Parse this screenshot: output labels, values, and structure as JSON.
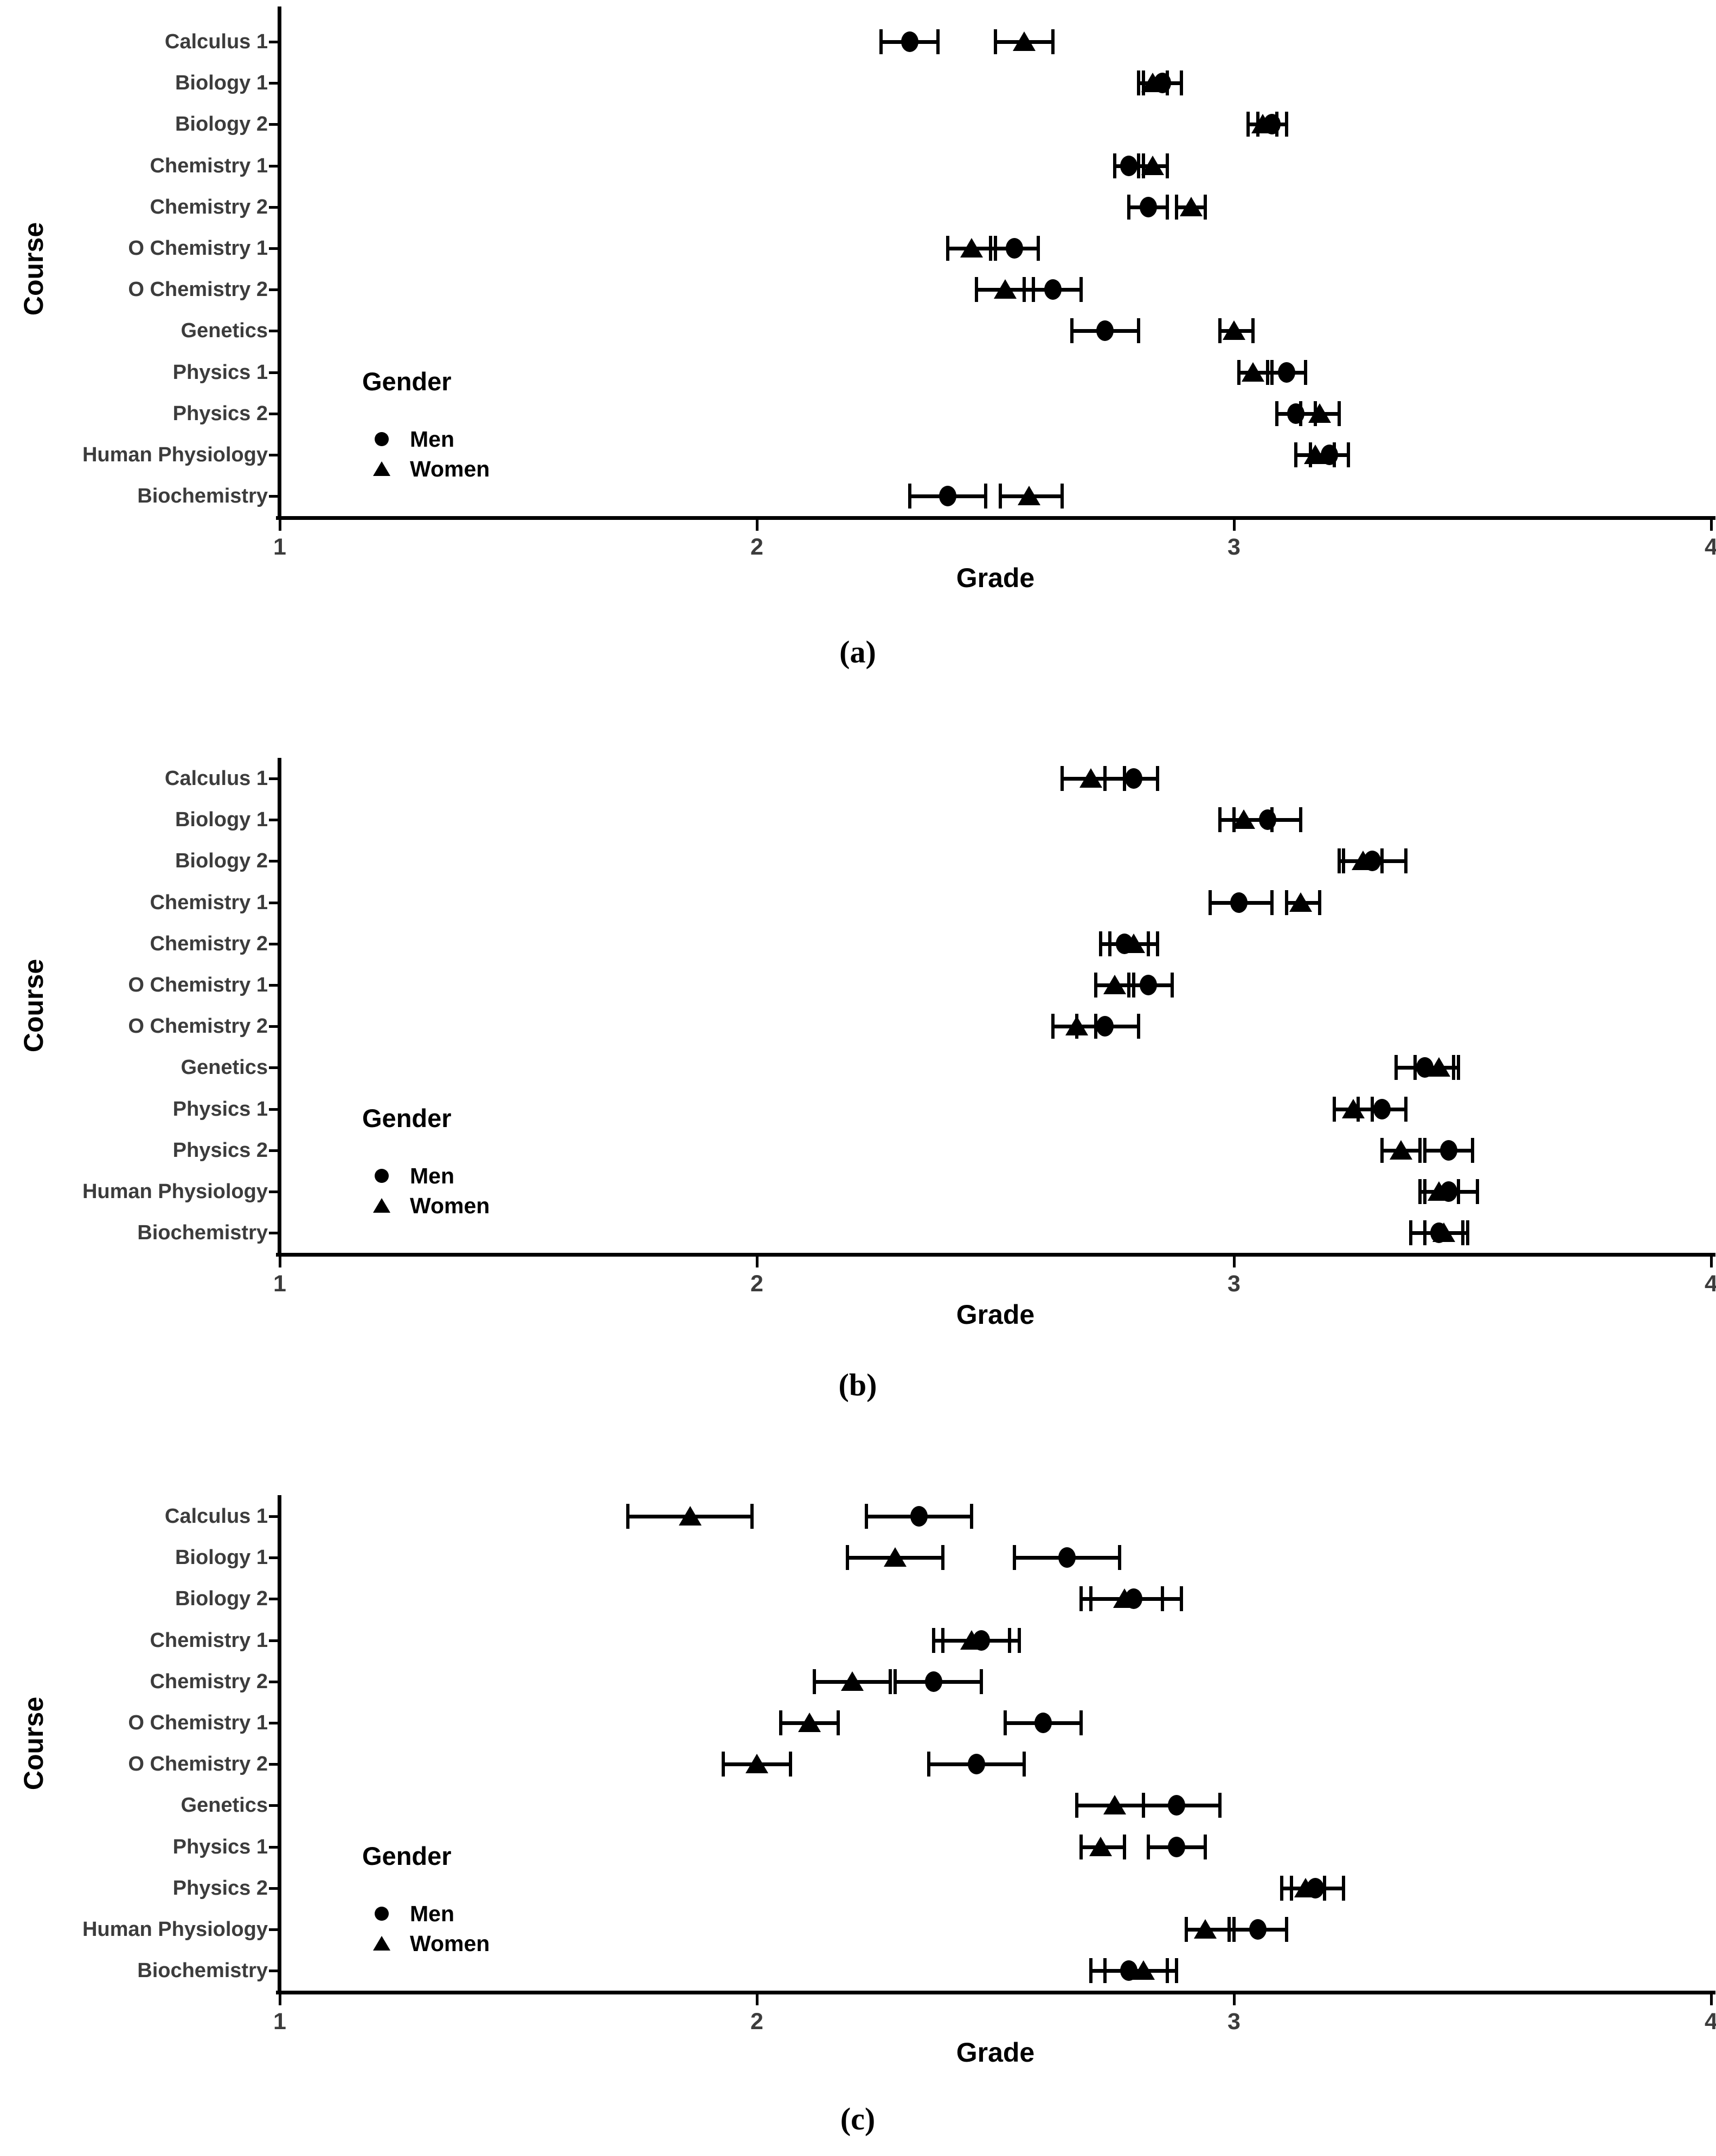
{
  "figure": {
    "x_axis_label": "Grade",
    "y_axis_label": "Course",
    "x_ticks": [
      "1",
      "2",
      "3",
      "4"
    ],
    "legend": {
      "title": "Gender",
      "men_label": "Men",
      "women_label": "Women"
    },
    "marker_color": "#000000",
    "text_color": "#3c3c3c",
    "panel_letters": [
      "(a)",
      "(b)",
      "(c)"
    ]
  },
  "chart_data": [
    {
      "type": "scatter",
      "panel": "(a)",
      "xlabel": "Grade",
      "ylabel": "Course",
      "xlim": [
        1,
        4
      ],
      "xticks": [
        1,
        2,
        3,
        4
      ],
      "grid": false,
      "legend": {
        "title": "Gender",
        "series": [
          "Men",
          "Women"
        ],
        "position": "inside-lower-left"
      },
      "categories": [
        "Calculus 1",
        "Biology 1",
        "Biology 2",
        "Chemistry 1",
        "Chemistry 2",
        "O Chemistry 1",
        "O Chemistry 2",
        "Genetics",
        "Physics 1",
        "Physics 2",
        "Human Physiology",
        "Biochemistry"
      ],
      "series": [
        {
          "name": "Men",
          "marker": "circle",
          "values": [
            2.32,
            2.85,
            3.08,
            2.78,
            2.82,
            2.54,
            2.62,
            2.73,
            3.11,
            3.13,
            3.2,
            2.4
          ],
          "ci_low": [
            2.26,
            2.81,
            3.05,
            2.75,
            2.78,
            2.49,
            2.56,
            2.66,
            3.07,
            3.09,
            3.16,
            2.32
          ],
          "ci_high": [
            2.38,
            2.89,
            3.11,
            2.81,
            2.86,
            2.59,
            2.68,
            2.8,
            3.15,
            3.17,
            3.24,
            2.48
          ]
        },
        {
          "name": "Women",
          "marker": "triangle",
          "values": [
            2.56,
            2.83,
            3.06,
            2.83,
            2.91,
            2.45,
            2.52,
            3.0,
            3.04,
            3.18,
            3.17,
            2.57
          ],
          "ci_low": [
            2.5,
            2.8,
            3.03,
            2.8,
            2.88,
            2.4,
            2.46,
            2.97,
            3.01,
            3.14,
            3.13,
            2.51
          ],
          "ci_high": [
            2.62,
            2.86,
            3.09,
            2.86,
            2.94,
            2.5,
            2.58,
            3.04,
            3.08,
            3.22,
            3.21,
            2.64
          ]
        }
      ]
    },
    {
      "type": "scatter",
      "panel": "(b)",
      "xlabel": "Grade",
      "ylabel": "Course",
      "xlim": [
        1,
        4
      ],
      "xticks": [
        1,
        2,
        3,
        4
      ],
      "grid": false,
      "legend": {
        "title": "Gender",
        "series": [
          "Men",
          "Women"
        ],
        "position": "inside-lower-left"
      },
      "categories": [
        "Calculus 1",
        "Biology 1",
        "Biology 2",
        "Chemistry 1",
        "Chemistry 2",
        "O Chemistry 1",
        "O Chemistry 2",
        "Genetics",
        "Physics 1",
        "Physics 2",
        "Human Physiology",
        "Biochemistry"
      ],
      "series": [
        {
          "name": "Men",
          "marker": "circle",
          "values": [
            2.79,
            3.07,
            3.29,
            3.01,
            2.77,
            2.82,
            2.73,
            3.4,
            3.31,
            3.45,
            3.45,
            3.43
          ],
          "ci_low": [
            2.73,
            3.0,
            3.23,
            2.95,
            2.72,
            2.78,
            2.67,
            3.34,
            3.26,
            3.4,
            3.4,
            3.37
          ],
          "ci_high": [
            2.84,
            3.14,
            3.36,
            3.08,
            2.82,
            2.87,
            2.8,
            3.46,
            3.36,
            3.5,
            3.51,
            3.48
          ]
        },
        {
          "name": "Women",
          "marker": "triangle",
          "values": [
            2.7,
            3.02,
            3.27,
            3.14,
            2.79,
            2.75,
            2.67,
            3.43,
            3.25,
            3.35,
            3.43,
            3.44
          ],
          "ci_low": [
            2.64,
            2.97,
            3.22,
            3.11,
            2.74,
            2.71,
            2.62,
            3.38,
            3.21,
            3.31,
            3.39,
            3.4
          ],
          "ci_high": [
            2.77,
            3.08,
            3.31,
            3.18,
            2.84,
            2.79,
            2.71,
            3.47,
            3.29,
            3.39,
            3.47,
            3.49
          ]
        }
      ]
    },
    {
      "type": "scatter",
      "panel": "(c)",
      "xlabel": "Grade",
      "ylabel": "Course",
      "xlim": [
        1,
        4
      ],
      "xticks": [
        1,
        2,
        3,
        4
      ],
      "grid": false,
      "legend": {
        "title": "Gender",
        "series": [
          "Men",
          "Women"
        ],
        "position": "inside-lower-left"
      },
      "categories": [
        "Calculus 1",
        "Biology 1",
        "Biology 2",
        "Chemistry 1",
        "Chemistry 2",
        "O Chemistry 1",
        "O Chemistry 2",
        "Genetics",
        "Physics 1",
        "Physics 2",
        "Human Physiology",
        "Biochemistry"
      ],
      "series": [
        {
          "name": "Men",
          "marker": "circle",
          "values": [
            2.34,
            2.65,
            2.79,
            2.47,
            2.37,
            2.6,
            2.46,
            2.88,
            2.88,
            3.17,
            3.05,
            2.78
          ],
          "ci_low": [
            2.23,
            2.54,
            2.7,
            2.39,
            2.29,
            2.52,
            2.36,
            2.81,
            2.82,
            3.12,
            2.99,
            2.7
          ],
          "ci_high": [
            2.45,
            2.76,
            2.89,
            2.55,
            2.47,
            2.68,
            2.56,
            2.97,
            2.94,
            3.23,
            3.11,
            2.86
          ]
        },
        {
          "name": "Women",
          "marker": "triangle",
          "values": [
            1.86,
            2.29,
            2.77,
            2.45,
            2.2,
            2.11,
            2.0,
            2.75,
            2.72,
            3.15,
            2.94,
            2.81
          ],
          "ci_low": [
            1.73,
            2.19,
            2.68,
            2.37,
            2.12,
            2.05,
            1.93,
            2.67,
            2.68,
            3.1,
            2.9,
            2.73
          ],
          "ci_high": [
            1.99,
            2.39,
            2.85,
            2.53,
            2.28,
            2.17,
            2.07,
            2.81,
            2.77,
            3.19,
            3.0,
            2.88
          ]
        }
      ]
    }
  ]
}
